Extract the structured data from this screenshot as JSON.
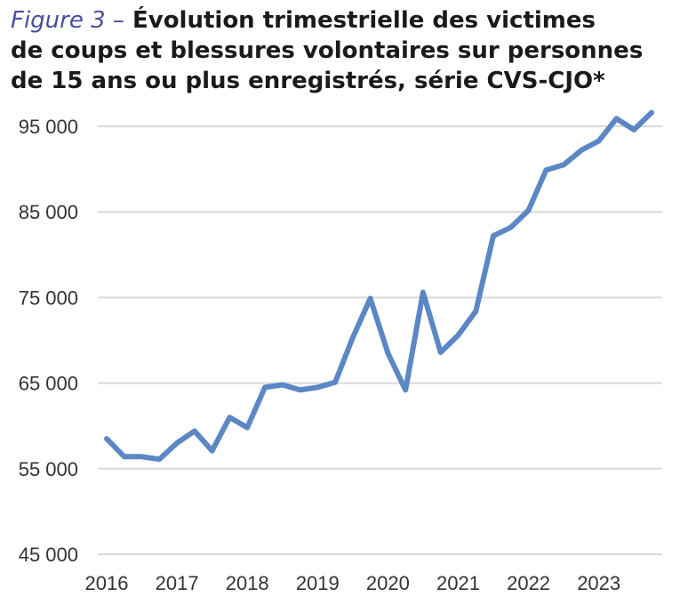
{
  "title": {
    "prefix": "Figure 3 –",
    "lines": [
      "Évolution trimestrielle des victimes",
      "de coups et blessures volontaires sur personnes",
      "de 15 ans ou plus enregistrés, série CVS-CJO*"
    ]
  },
  "colors": {
    "line": "#5b87c5",
    "grid": "#d9d9d9",
    "title_prefix": "#4a4fa0"
  },
  "chart_data": {
    "type": "line",
    "title": "Figure 3 – Évolution trimestrielle des victimes de coups et blessures volontaires sur personnes de 15 ans ou plus enregistrés, série CVS-CJO*",
    "xlabel": "",
    "ylabel": "",
    "ylim": [
      45000,
      97000
    ],
    "grid": true,
    "yticks": [
      95000,
      85000,
      75000,
      65000,
      55000,
      45000
    ],
    "ytick_labels": [
      "95 000",
      "85 000",
      "75 000",
      "65 000",
      "55 000",
      "45 000"
    ],
    "xticks": [
      "2016",
      "2017",
      "2018",
      "2019",
      "2020",
      "2021",
      "2022",
      "2023"
    ],
    "x": [
      "2016-T1",
      "2016-T2",
      "2016-T3",
      "2016-T4",
      "2017-T1",
      "2017-T2",
      "2017-T3",
      "2017-T4",
      "2018-T1",
      "2018-T2",
      "2018-T3",
      "2018-T4",
      "2019-T1",
      "2019-T2",
      "2019-T3",
      "2019-T4",
      "2020-T1",
      "2020-T2",
      "2020-T3",
      "2020-T4",
      "2021-T1",
      "2021-T2",
      "2021-T3",
      "2021-T4",
      "2022-T1",
      "2022-T2",
      "2022-T3",
      "2022-T4",
      "2023-T1",
      "2023-T2",
      "2023-T3",
      "2023-T4"
    ],
    "series": [
      {
        "values": [
          58500,
          56400,
          56400,
          56100,
          58000,
          59400,
          57100,
          61000,
          59800,
          64500,
          64800,
          64200,
          64500,
          65100,
          70300,
          74900,
          68500,
          64200,
          75600,
          68600,
          70600,
          73400,
          82200,
          83200,
          85200,
          89900,
          90500,
          92200,
          93300,
          95900,
          94600,
          96600
        ]
      }
    ]
  }
}
